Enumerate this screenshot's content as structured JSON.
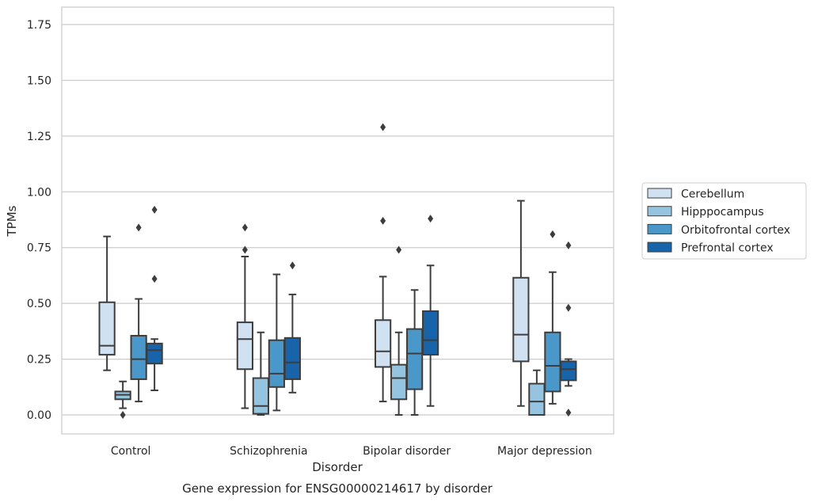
{
  "chart_data": {
    "type": "box",
    "xlabel": "Disorder",
    "ylabel": "TPMs",
    "caption": "Gene expression for ENSG00000214617 by disorder",
    "ylim": [
      -0.085,
      1.83
    ],
    "yticks": [
      "0.00",
      "0.25",
      "0.50",
      "0.75",
      "1.00",
      "1.25",
      "1.50",
      "1.75"
    ],
    "categories": [
      "Control",
      "Schizophrenia",
      "Bipolar disorder",
      "Major depression"
    ],
    "grid": "horizontal",
    "legend_position": "right",
    "series": [
      {
        "name": "Cerebellum",
        "color": "#d0e1f2",
        "boxes": [
          {
            "whislo": 0.2,
            "q1": 0.27,
            "med": 0.31,
            "q3": 0.505,
            "whishi": 0.8,
            "fliers": []
          },
          {
            "whislo": 0.03,
            "q1": 0.205,
            "med": 0.34,
            "q3": 0.415,
            "whishi": 0.71,
            "fliers": [
              0.74,
              0.84
            ]
          },
          {
            "whislo": 0.06,
            "q1": 0.215,
            "med": 0.285,
            "q3": 0.425,
            "whishi": 0.62,
            "fliers": [
              0.87,
              1.29
            ]
          },
          {
            "whislo": 0.04,
            "q1": 0.24,
            "med": 0.36,
            "q3": 0.615,
            "whishi": 0.96,
            "fliers": []
          }
        ]
      },
      {
        "name": "Hipppocampus",
        "color": "#94c4df",
        "boxes": [
          {
            "whislo": 0.03,
            "q1": 0.07,
            "med": 0.09,
            "q3": 0.105,
            "whishi": 0.15,
            "fliers": [
              0.0
            ]
          },
          {
            "whislo": 0.0,
            "q1": 0.005,
            "med": 0.04,
            "q3": 0.165,
            "whishi": 0.37,
            "fliers": []
          },
          {
            "whislo": 0.0,
            "q1": 0.07,
            "med": 0.165,
            "q3": 0.225,
            "whishi": 0.37,
            "fliers": [
              0.74
            ]
          },
          {
            "whislo": 0.0,
            "q1": 0.0,
            "med": 0.06,
            "q3": 0.14,
            "whishi": 0.2,
            "fliers": []
          }
        ]
      },
      {
        "name": "Orbitofrontal cortex",
        "color": "#4a98c9",
        "boxes": [
          {
            "whislo": 0.06,
            "q1": 0.16,
            "med": 0.25,
            "q3": 0.355,
            "whishi": 0.52,
            "fliers": [
              0.84
            ]
          },
          {
            "whislo": 0.02,
            "q1": 0.125,
            "med": 0.185,
            "q3": 0.335,
            "whishi": 0.63,
            "fliers": []
          },
          {
            "whislo": 0.0,
            "q1": 0.115,
            "med": 0.275,
            "q3": 0.385,
            "whishi": 0.56,
            "fliers": []
          },
          {
            "whislo": 0.05,
            "q1": 0.105,
            "med": 0.22,
            "q3": 0.37,
            "whishi": 0.64,
            "fliers": [
              0.81
            ]
          }
        ]
      },
      {
        "name": "Prefrontal cortex",
        "color": "#1764ab",
        "boxes": [
          {
            "whislo": 0.11,
            "q1": 0.23,
            "med": 0.29,
            "q3": 0.32,
            "whishi": 0.34,
            "fliers": [
              0.61,
              0.92
            ]
          },
          {
            "whislo": 0.1,
            "q1": 0.16,
            "med": 0.235,
            "q3": 0.345,
            "whishi": 0.54,
            "fliers": [
              0.67
            ]
          },
          {
            "whislo": 0.04,
            "q1": 0.27,
            "med": 0.335,
            "q3": 0.465,
            "whishi": 0.67,
            "fliers": [
              0.88
            ]
          },
          {
            "whislo": 0.13,
            "q1": 0.155,
            "med": 0.205,
            "q3": 0.24,
            "whishi": 0.25,
            "fliers": [
              0.01,
              0.48,
              0.76
            ]
          }
        ]
      }
    ]
  }
}
